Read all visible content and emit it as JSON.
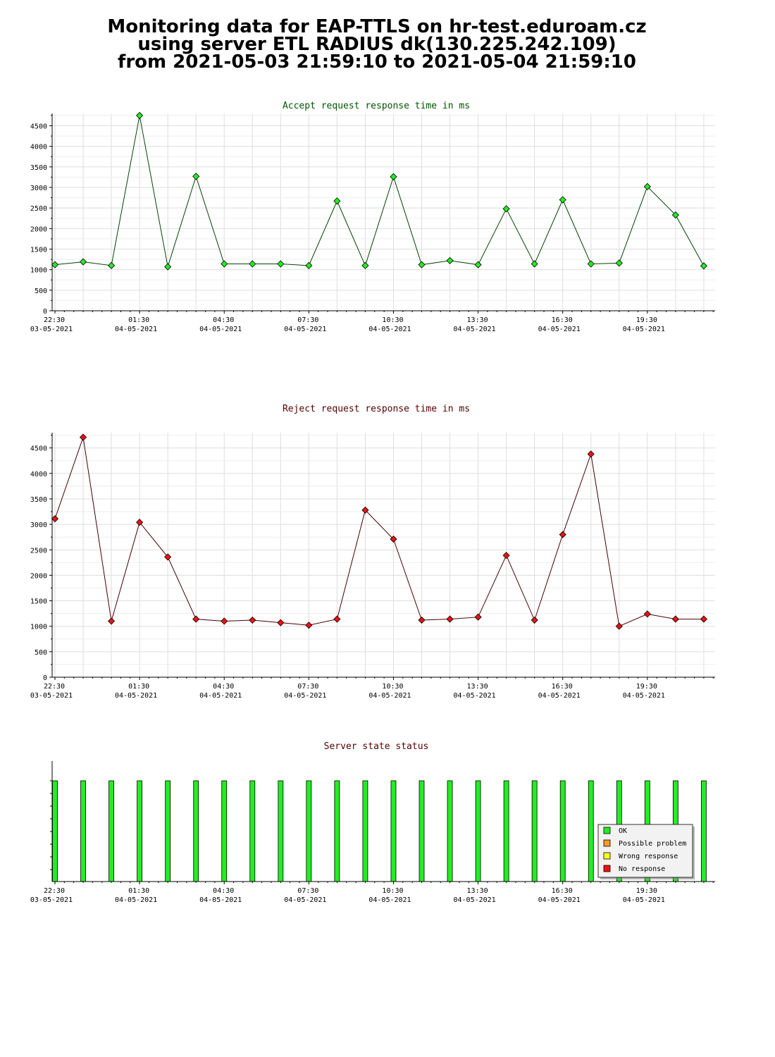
{
  "header": {
    "line1": "Monitoring data for EAP-TTLS on hr-test.eduroam.cz",
    "line2": "using server ETL RADIUS dk(130.225.242.109)",
    "line3": "from 2021-05-03 21:59:10 to 2021-05-04 21:59:10"
  },
  "colors": {
    "accept_line": "#004400",
    "accept_marker": "#22ee22",
    "reject_line": "#440000",
    "reject_marker": "#ee1111",
    "grid": "#dddddd",
    "ok": "#22ee22",
    "possible_problem": "#ff9922",
    "wrong_response": "#ffff22",
    "no_response": "#ee1111"
  },
  "x_ticks": [
    {
      "time": "22:30",
      "date": "03-05-2021"
    },
    {
      "time": "01:30",
      "date": "04-05-2021"
    },
    {
      "time": "04:30",
      "date": "04-05-2021"
    },
    {
      "time": "07:30",
      "date": "04-05-2021"
    },
    {
      "time": "10:30",
      "date": "04-05-2021"
    },
    {
      "time": "13:30",
      "date": "04-05-2021"
    },
    {
      "time": "16:30",
      "date": "04-05-2021"
    },
    {
      "time": "19:30",
      "date": "04-05-2021"
    }
  ],
  "chart_data": [
    {
      "type": "line",
      "title": "Accept request response time in ms",
      "x_start": "2021-05-03 22:30",
      "x_interval_minutes": 60,
      "ylim": [
        0,
        4800
      ],
      "yticks": [
        0,
        500,
        1000,
        1500,
        2000,
        2500,
        3000,
        3500,
        4000,
        4500
      ],
      "grid": true,
      "series": [
        {
          "values": [
            1120,
            1190,
            1100,
            4750,
            1070,
            3270,
            1140,
            1140,
            1140,
            1100,
            2670,
            1100,
            3260,
            1120,
            1220,
            1120,
            2480,
            1140,
            2700,
            1140,
            1160,
            3020,
            2330,
            1090
          ]
        }
      ]
    },
    {
      "type": "line",
      "title": "Reject request response time in ms",
      "x_start": "2021-05-03 22:30",
      "x_interval_minutes": 60,
      "ylim": [
        0,
        4800
      ],
      "yticks": [
        0,
        500,
        1000,
        1500,
        2000,
        2500,
        3000,
        3500,
        4000,
        4500
      ],
      "grid": true,
      "series": [
        {
          "values": [
            3110,
            4710,
            1100,
            3040,
            2360,
            1140,
            1100,
            1120,
            1070,
            1020,
            1140,
            3280,
            2710,
            1120,
            1140,
            1180,
            2390,
            1120,
            2800,
            4380,
            1000,
            1240,
            1140,
            1140
          ]
        }
      ]
    },
    {
      "type": "bar",
      "title": "Server state status",
      "x_start": "2021-05-03 22:30",
      "x_interval_minutes": 60,
      "grid": false,
      "legend_position": "bottom-right",
      "legend": [
        "OK",
        "Possible problem",
        "Wrong response",
        "No response"
      ],
      "states": [
        "OK",
        "OK",
        "OK",
        "OK",
        "OK",
        "OK",
        "OK",
        "OK",
        "OK",
        "OK",
        "OK",
        "OK",
        "OK",
        "OK",
        "OK",
        "OK",
        "OK",
        "OK",
        "OK",
        "OK",
        "OK",
        "OK",
        "OK",
        "OK"
      ]
    }
  ]
}
